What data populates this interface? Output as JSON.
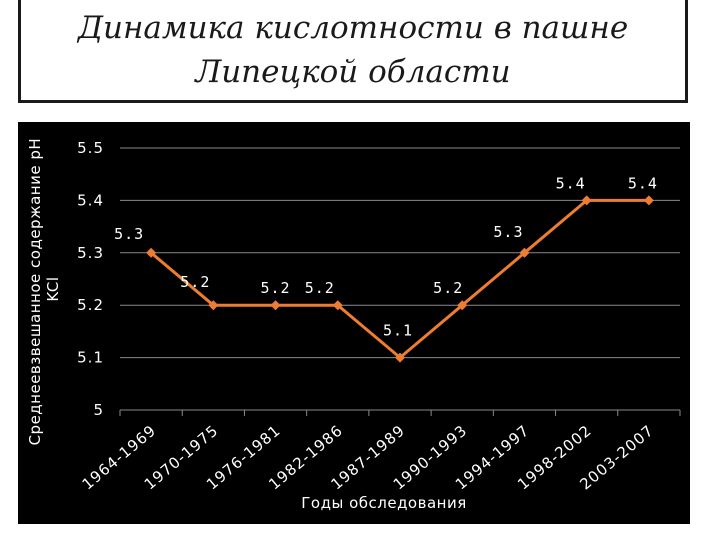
{
  "title_lines": [
    "Динамика кислотности в пашне",
    "Липецкой области"
  ],
  "colors": {
    "line": "#ed7d31",
    "background": "#000000",
    "text": "#ffffff",
    "grid": "#8a8a8a"
  },
  "chart_data": {
    "type": "line",
    "categories": [
      "1964-1969",
      "1970-1975",
      "1976-1981",
      "1982-1986",
      "1987-1989",
      "1990-1993",
      "1994-1997",
      "1998-2002",
      "2003-2007"
    ],
    "series": [
      {
        "values": [
          5.3,
          5.2,
          5.2,
          5.2,
          5.1,
          5.2,
          5.3,
          5.4,
          5.4
        ]
      }
    ],
    "data_labels": [
      "5.3",
      "5.2",
      "5.2",
      "5.2",
      "5.1",
      "5.2",
      "5.3",
      "5.4",
      "5.4"
    ],
    "ylim": [
      5,
      5.5
    ],
    "y_ticks": [
      5,
      5.1,
      5.2,
      5.3,
      5.4,
      5.5
    ],
    "y_tick_labels": [
      "5",
      "5.1",
      "5.2",
      "5.3",
      "5.4",
      "5.5"
    ],
    "xlabel": "Годы обследования",
    "ylabel_lines": [
      "Среднеевзвешанное содержание pH",
      "KCl"
    ],
    "grid": true,
    "legend": "none"
  }
}
